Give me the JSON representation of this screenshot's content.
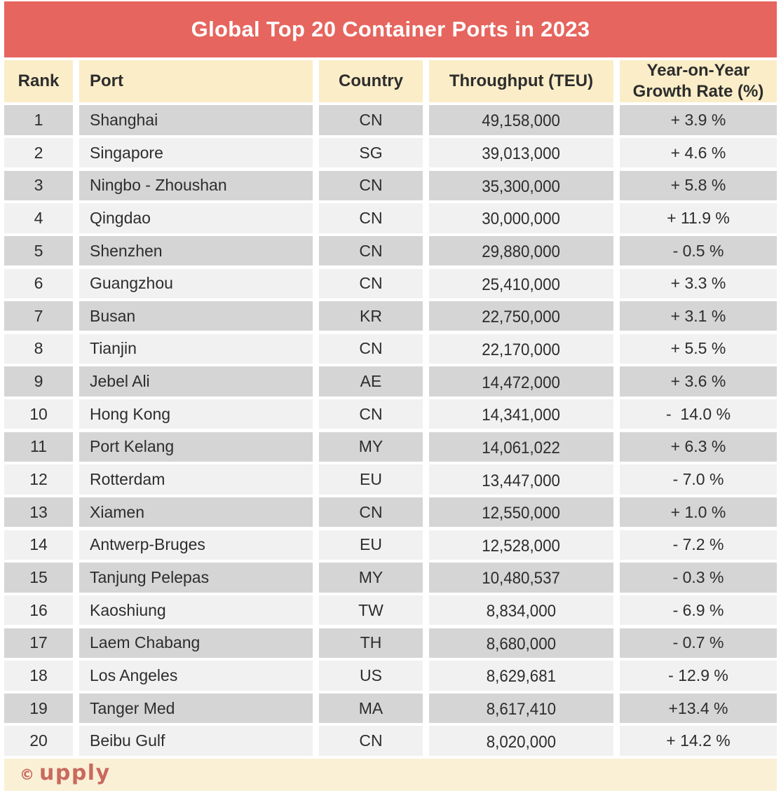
{
  "title": "Global Top 20 Container Ports in 2023",
  "colors": {
    "title_bg": "#E6655E",
    "header_bg": "#FAEDC8",
    "footer_bg": "#FAF0D6",
    "row_dark": "#D5D5D5",
    "row_light": "#F1F1F1",
    "text_color": "#2D2D2D",
    "logo_color": "#C9695E"
  },
  "header": {
    "rank": "Rank",
    "port": "Port",
    "country": "Country",
    "throughput": "Throughput (TEU)",
    "growth_line1": "Year-on-Year",
    "growth_line2": "Growth Rate (%)"
  },
  "table": {
    "rows": [
      {
        "rank": "1",
        "port": "Shanghai",
        "country": "CN",
        "throughput": "49,158,000",
        "growth": "+ 3.9 %"
      },
      {
        "rank": "2",
        "port": "Singapore",
        "country": "SG",
        "throughput": "39,013,000",
        "growth": "+ 4.6 %"
      },
      {
        "rank": "3",
        "port": "Ningbo - Zhoushan",
        "country": "CN",
        "throughput": "35,300,000",
        "growth": "+ 5.8 %"
      },
      {
        "rank": "4",
        "port": "Qingdao",
        "country": "CN",
        "throughput": "30,000,000",
        "growth": "+ 11.9 %"
      },
      {
        "rank": "5",
        "port": "Shenzhen",
        "country": "CN",
        "throughput": "29,880,000",
        "growth": "- 0.5 %"
      },
      {
        "rank": "6",
        "port": "Guangzhou",
        "country": "CN",
        "throughput": "25,410,000",
        "growth": "+ 3.3 %"
      },
      {
        "rank": "7",
        "port": "Busan",
        "country": "KR",
        "throughput": "22,750,000",
        "growth": "+ 3.1 %"
      },
      {
        "rank": "8",
        "port": "Tianjin",
        "country": "CN",
        "throughput": "22,170,000",
        "growth": "+ 5.5 %"
      },
      {
        "rank": "9",
        "port": "Jebel Ali",
        "country": "AE",
        "throughput": "14,472,000",
        "growth": "+ 3.6 %"
      },
      {
        "rank": "10",
        "port": "Hong Kong",
        "country": "CN",
        "throughput": "14,341,000",
        "growth": "-  14.0 %"
      },
      {
        "rank": "11",
        "port": "Port Kelang",
        "country": "MY",
        "throughput": "14,061,022",
        "growth": "+ 6.3 %"
      },
      {
        "rank": "12",
        "port": "Rotterdam",
        "country": "EU",
        "throughput": "13,447,000",
        "growth": "- 7.0 %"
      },
      {
        "rank": "13",
        "port": "Xiamen",
        "country": "CN",
        "throughput": "12,550,000",
        "growth": "+ 1.0 %"
      },
      {
        "rank": "14",
        "port": "Antwerp-Bruges",
        "country": "EU",
        "throughput": "12,528,000",
        "growth": "- 7.2 %"
      },
      {
        "rank": "15",
        "port": "Tanjung Pelepas",
        "country": "MY",
        "throughput": "10,480,537",
        "growth": "- 0.3 %"
      },
      {
        "rank": "16",
        "port": "Kaoshiung",
        "country": "TW",
        "throughput": "8,834,000",
        "growth": "- 6.9 %"
      },
      {
        "rank": "17",
        "port": "Laem Chabang",
        "country": "TH",
        "throughput": "8,680,000",
        "growth": "- 0.7 %"
      },
      {
        "rank": "18",
        "port": "Los Angeles",
        "country": "US",
        "throughput": "8,629,681",
        "growth": "- 12.9 %"
      },
      {
        "rank": "19",
        "port": "Tanger Med",
        "country": "MA",
        "throughput": "8,617,410",
        "growth": "+13.4 %"
      },
      {
        "rank": "20",
        "port": "Beibu Gulf",
        "country": "CN",
        "throughput": "8,020,000",
        "growth": "+ 14.2 %"
      }
    ]
  },
  "footer": {
    "copyright_symbol": "©",
    "logo_text": "upply"
  },
  "chart_data": {
    "type": "table",
    "title": "Global Top 20 Container Ports in 2023",
    "columns": [
      "Rank",
      "Port",
      "Country",
      "Throughput (TEU)",
      "Year-on-Year Growth Rate (%)"
    ],
    "rows": [
      [
        1,
        "Shanghai",
        "CN",
        49158000,
        3.9
      ],
      [
        2,
        "Singapore",
        "SG",
        39013000,
        4.6
      ],
      [
        3,
        "Ningbo - Zhoushan",
        "CN",
        35300000,
        5.8
      ],
      [
        4,
        "Qingdao",
        "CN",
        30000000,
        11.9
      ],
      [
        5,
        "Shenzhen",
        "CN",
        29880000,
        -0.5
      ],
      [
        6,
        "Guangzhou",
        "CN",
        25410000,
        3.3
      ],
      [
        7,
        "Busan",
        "KR",
        22750000,
        3.1
      ],
      [
        8,
        "Tianjin",
        "CN",
        22170000,
        5.5
      ],
      [
        9,
        "Jebel Ali",
        "AE",
        14472000,
        3.6
      ],
      [
        10,
        "Hong Kong",
        "CN",
        14341000,
        -14.0
      ],
      [
        11,
        "Port Kelang",
        "MY",
        14061022,
        6.3
      ],
      [
        12,
        "Rotterdam",
        "EU",
        13447000,
        -7.0
      ],
      [
        13,
        "Xiamen",
        "CN",
        12550000,
        1.0
      ],
      [
        14,
        "Antwerp-Bruges",
        "EU",
        12528000,
        -7.2
      ],
      [
        15,
        "Tanjung Pelepas",
        "MY",
        10480537,
        -0.3
      ],
      [
        16,
        "Kaoshiung",
        "TW",
        8834000,
        -6.9
      ],
      [
        17,
        "Laem Chabang",
        "TH",
        8680000,
        -0.7
      ],
      [
        18,
        "Los Angeles",
        "US",
        8629681,
        -12.9
      ],
      [
        19,
        "Tanger Med",
        "MA",
        8617410,
        13.4
      ],
      [
        20,
        "Beibu Gulf",
        "CN",
        8020000,
        14.2
      ]
    ]
  }
}
